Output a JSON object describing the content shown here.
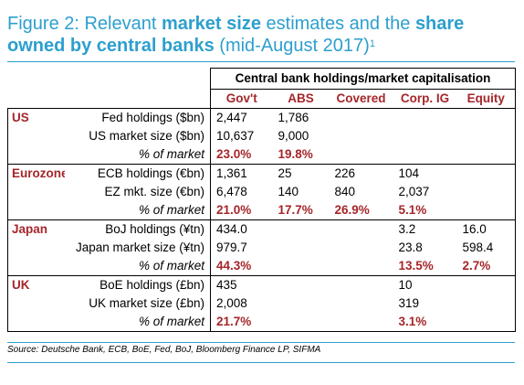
{
  "title": {
    "part1": "Figure 2: Relevant ",
    "bold1": "market size",
    "part2": " estimates and the ",
    "bold2": "share owned by central banks",
    "part3": " (mid-August 2017)",
    "footnote": "1"
  },
  "table": {
    "caption": "Central bank holdings/market capitalisation",
    "columns": [
      "Gov't",
      "ABS",
      "Covered",
      "Corp. IG",
      "Equity"
    ],
    "groups": [
      {
        "region": "US",
        "rows": [
          {
            "label": "Fed holdings ($bn)",
            "values": [
              "2,447",
              "1,786",
              "",
              "",
              ""
            ]
          },
          {
            "label": "US market size ($bn)",
            "values": [
              "10,637",
              "9,000",
              "",
              "",
              ""
            ]
          },
          {
            "label": "% of market",
            "values": [
              "23.0%",
              "19.8%",
              "",
              "",
              ""
            ]
          }
        ]
      },
      {
        "region": "Eurozone",
        "rows": [
          {
            "label": "ECB holdings (€bn)",
            "values": [
              "1,361",
              "25",
              "226",
              "104",
              ""
            ]
          },
          {
            "label": "EZ mkt. size (€bn)",
            "values": [
              "6,478",
              "140",
              "840",
              "2,037",
              ""
            ]
          },
          {
            "label": "% of market",
            "values": [
              "21.0%",
              "17.7%",
              "26.9%",
              "5.1%",
              ""
            ]
          }
        ]
      },
      {
        "region": "Japan",
        "rows": [
          {
            "label": "BoJ holdings (¥tn)",
            "values": [
              "434.0",
              "",
              "",
              "3.2",
              "16.0"
            ]
          },
          {
            "label": "Japan market size (¥tn)",
            "values": [
              "979.7",
              "",
              "",
              "23.8",
              "598.4"
            ]
          },
          {
            "label": "% of market",
            "values": [
              "44.3%",
              "",
              "",
              "13.5%",
              "2.7%"
            ]
          }
        ]
      },
      {
        "region": "UK",
        "rows": [
          {
            "label": "BoE holdings (£bn)",
            "values": [
              "435",
              "",
              "",
              "10",
              ""
            ]
          },
          {
            "label": "UK market size (£bn)",
            "values": [
              "2,008",
              "",
              "",
              "319",
              ""
            ]
          },
          {
            "label": "% of market",
            "values": [
              "21.7%",
              "",
              "",
              "3.1%",
              ""
            ]
          }
        ]
      }
    ]
  },
  "source": "Source: Deutsche Bank, ECB, BoE, Fed, BoJ, Bloomberg Finance LP, SIFMA",
  "colors": {
    "accent": "#2d9fce",
    "emphasis": "#a5262a"
  }
}
